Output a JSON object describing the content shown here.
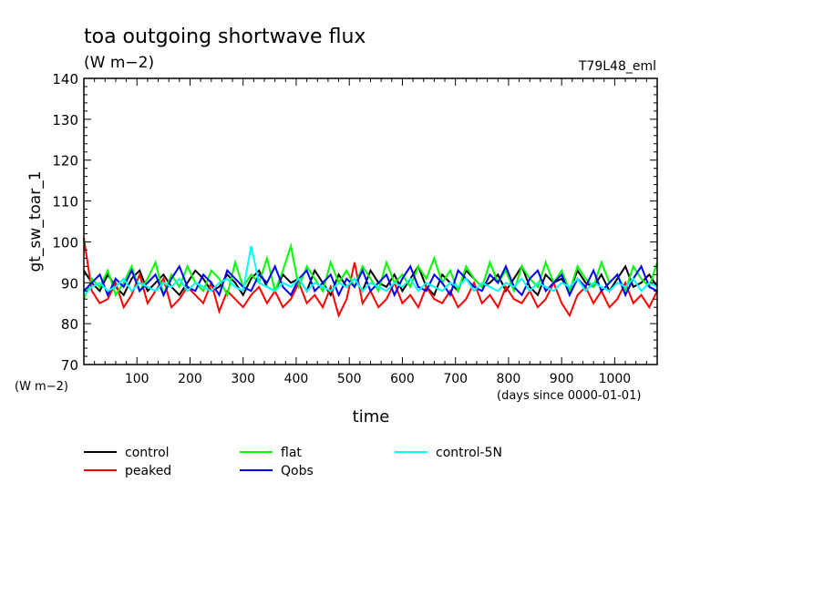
{
  "chart_data": {
    "type": "line",
    "title": "toa outgoing shortwave flux",
    "subtitle": "(W m−2)",
    "run_label": "T79L48_eml",
    "ylabel": "gt_sw_toar_1",
    "yunit": "(W m−2)",
    "xlabel": "time",
    "xunit": "(days since 0000-01-01)",
    "xlim": [
      0,
      1080
    ],
    "ylim": [
      70,
      140
    ],
    "xticks": [
      100,
      200,
      300,
      400,
      500,
      600,
      700,
      800,
      900,
      1000
    ],
    "yticks": [
      70,
      80,
      90,
      100,
      110,
      120,
      130,
      140
    ],
    "grid": false,
    "legend_position": "bottom",
    "x": [
      0,
      15,
      30,
      45,
      60,
      75,
      90,
      105,
      120,
      135,
      150,
      165,
      180,
      195,
      210,
      225,
      240,
      255,
      270,
      285,
      300,
      315,
      330,
      345,
      360,
      375,
      390,
      405,
      420,
      435,
      450,
      465,
      480,
      495,
      510,
      525,
      540,
      555,
      570,
      585,
      600,
      615,
      630,
      645,
      660,
      675,
      690,
      705,
      720,
      735,
      750,
      765,
      780,
      795,
      810,
      825,
      840,
      855,
      870,
      885,
      900,
      915,
      930,
      945,
      960,
      975,
      990,
      1005,
      1020,
      1035,
      1050,
      1065,
      1080
    ],
    "series": [
      {
        "name": "control",
        "color": "#000000",
        "values": [
          93,
          90,
          88,
          92,
          89,
          87,
          91,
          93,
          88,
          90,
          92,
          89,
          87,
          90,
          93,
          91,
          88,
          89,
          92,
          90,
          87,
          91,
          93,
          89,
          88,
          92,
          90,
          91,
          88,
          93,
          90,
          87,
          92,
          89,
          91,
          88,
          93,
          90,
          89,
          92,
          88,
          91,
          94,
          89,
          87,
          92,
          90,
          88,
          93,
          91,
          89,
          90,
          92,
          88,
          91,
          94,
          89,
          87,
          92,
          90,
          91,
          88,
          93,
          90,
          89,
          92,
          88,
          91,
          94,
          89,
          90,
          92,
          89
        ]
      },
      {
        "name": "peaked",
        "color": "#ff0000",
        "values": [
          101,
          88,
          85,
          86,
          90,
          84,
          87,
          92,
          85,
          88,
          91,
          84,
          86,
          89,
          87,
          85,
          90,
          83,
          88,
          86,
          84,
          87,
          89,
          85,
          88,
          84,
          86,
          90,
          85,
          87,
          84,
          89,
          82,
          86,
          95,
          85,
          88,
          84,
          86,
          90,
          85,
          87,
          84,
          89,
          86,
          85,
          88,
          84,
          86,
          90,
          85,
          87,
          84,
          89,
          86,
          85,
          88,
          84,
          86,
          90,
          85,
          82,
          87,
          89,
          85,
          88,
          84,
          86,
          90,
          85,
          87,
          84,
          88
        ]
      },
      {
        "name": "flat",
        "color": "#00ff00",
        "values": [
          86,
          91,
          89,
          93,
          87,
          90,
          94,
          88,
          91,
          95,
          87,
          92,
          89,
          94,
          90,
          88,
          93,
          91,
          87,
          95,
          89,
          92,
          90,
          96,
          88,
          93,
          99,
          89,
          94,
          91,
          88,
          95,
          90,
          93,
          89,
          94,
          91,
          88,
          95,
          90,
          92,
          89,
          94,
          91,
          96,
          90,
          93,
          88,
          94,
          91,
          89,
          95,
          90,
          93,
          88,
          94,
          91,
          89,
          95,
          90,
          93,
          88,
          94,
          91,
          89,
          95,
          90,
          92,
          88,
          94,
          91,
          89,
          95
        ]
      },
      {
        "name": "Qobs",
        "color": "#0000ff",
        "values": [
          88,
          90,
          92,
          87,
          91,
          89,
          93,
          88,
          90,
          92,
          87,
          91,
          94,
          89,
          88,
          92,
          90,
          87,
          93,
          91,
          89,
          88,
          92,
          90,
          94,
          89,
          87,
          91,
          93,
          88,
          90,
          92,
          87,
          91,
          89,
          93,
          88,
          90,
          92,
          87,
          91,
          94,
          89,
          88,
          92,
          90,
          87,
          93,
          91,
          89,
          88,
          92,
          90,
          94,
          89,
          87,
          91,
          93,
          88,
          90,
          92,
          87,
          91,
          89,
          93,
          88,
          90,
          92,
          87,
          91,
          94,
          89,
          88
        ]
      },
      {
        "name": "control-5N",
        "color": "#00ffff",
        "values": [
          87,
          89,
          90,
          88,
          89,
          91,
          88,
          90,
          89,
          88,
          90,
          89,
          91,
          88,
          90,
          89,
          88,
          90,
          91,
          89,
          88,
          99,
          90,
          89,
          88,
          90,
          89,
          91,
          88,
          90,
          89,
          88,
          90,
          89,
          91,
          88,
          90,
          89,
          88,
          90,
          89,
          91,
          88,
          90,
          89,
          88,
          90,
          89,
          91,
          88,
          90,
          89,
          88,
          90,
          89,
          91,
          88,
          90,
          89,
          88,
          90,
          89,
          91,
          88,
          90,
          89,
          88,
          90,
          89,
          91,
          88,
          90,
          89
        ]
      }
    ]
  }
}
